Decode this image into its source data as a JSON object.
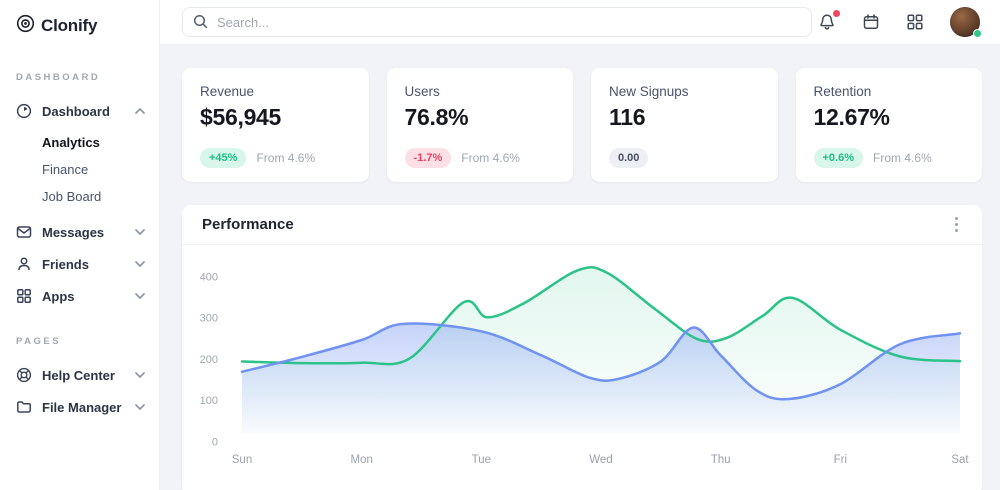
{
  "brand": {
    "name": "Clonify"
  },
  "sidebar": {
    "section_dashboard": "DASHBOARD",
    "section_pages": "PAGES",
    "dashboard": "Dashboard",
    "dashboard_children": {
      "analytics": "Analytics",
      "finance": "Finance",
      "job_board": "Job Board"
    },
    "messages": "Messages",
    "friends": "Friends",
    "apps": "Apps",
    "help_center": "Help Center",
    "file_manager": "File Manager"
  },
  "topbar": {
    "search_placeholder": "Search..."
  },
  "stats": {
    "cards": [
      {
        "title": "Revenue",
        "value": "$56,945",
        "badge": "+45%",
        "note": "From 4.6%"
      },
      {
        "title": "Users",
        "value": "76.8%",
        "badge": "-1.7%",
        "note": "From 4.6%"
      },
      {
        "title": "New Signups",
        "value": "116",
        "badge": "0.00",
        "note": ""
      },
      {
        "title": "Retention",
        "value": "12.67%",
        "badge": "+0.6%",
        "note": "From 4.6%"
      }
    ]
  },
  "chart_data": {
    "type": "area",
    "title": "Performance",
    "x_labels": [
      "Sun",
      "Mon",
      "Tue",
      "Wed",
      "Thu",
      "Fri",
      "Sat"
    ],
    "y_ticks": [
      0,
      100,
      200,
      300,
      400
    ],
    "ylim": [
      0,
      440
    ],
    "grid": false,
    "legend": "none",
    "series": [
      {
        "name": "series-green",
        "color": "#2bc389",
        "fill_top": "rgba(46,195,137,0.14)",
        "fill_bottom": "rgba(46,195,137,0.01)",
        "points": [
          [
            0,
            195
          ],
          [
            0.5,
            191
          ],
          [
            1,
            192
          ],
          [
            1.4,
            202
          ],
          [
            1.85,
            338
          ],
          [
            2.05,
            302
          ],
          [
            2.35,
            335
          ],
          [
            2.8,
            415
          ],
          [
            3.05,
            410
          ],
          [
            3.45,
            322
          ],
          [
            3.8,
            250
          ],
          [
            4.05,
            252
          ],
          [
            4.35,
            305
          ],
          [
            4.6,
            349
          ],
          [
            5,
            272
          ],
          [
            5.5,
            207
          ],
          [
            6,
            196
          ]
        ]
      },
      {
        "name": "series-blue",
        "color": "#7092f1",
        "fill_top": "rgba(112,146,241,0.40)",
        "fill_bottom": "rgba(112,146,241,0.03)",
        "points": [
          [
            0,
            170
          ],
          [
            0.5,
            206
          ],
          [
            1,
            247
          ],
          [
            1.35,
            286
          ],
          [
            2,
            268
          ],
          [
            2.5,
            210
          ],
          [
            2.9,
            156
          ],
          [
            3.15,
            153
          ],
          [
            3.5,
            195
          ],
          [
            3.77,
            277
          ],
          [
            4,
            210
          ],
          [
            4.3,
            125
          ],
          [
            4.57,
            104
          ],
          [
            5,
            140
          ],
          [
            5.5,
            237
          ],
          [
            6,
            263
          ]
        ]
      }
    ]
  }
}
